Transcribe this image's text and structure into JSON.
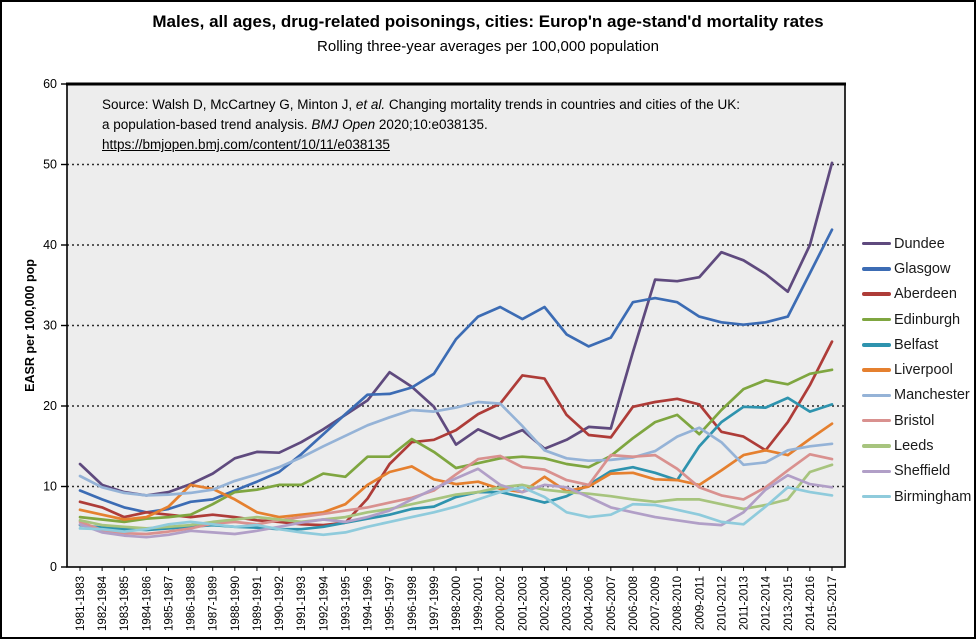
{
  "source_block": {
    "line1": [
      {
        "text": "Source: Walsh D, McCartney G, Minton J, "
      },
      {
        "text": "et al.",
        "italic": true
      },
      {
        "text": " Changing mortality trends in countries and cities of the UK:"
      }
    ],
    "line2": [
      {
        "text": "a population-based trend analysis. "
      },
      {
        "text": "BMJ Open",
        "italic": true
      },
      {
        "text": " 2020;10:e038135."
      }
    ],
    "line3": [
      {
        "text": "https://bmjopen.bmj.com/content/10/11/e038135",
        "underline": true
      }
    ]
  },
  "chart_data": {
    "type": "line",
    "title": "Males, all ages, drug-related poisonings, cities: Europ'n age-stand'd mortality rates",
    "subtitle": "Rolling three-year averages per 100,000 population",
    "ylabel": "EASR per 100,000 pop",
    "xlabel": "",
    "ylim": [
      0,
      60
    ],
    "ytick_interval": 10,
    "grid": "horizontal dotted at 10,20,30,40,50",
    "legend_position": "right",
    "plot_background": "#EDEDED",
    "categories": [
      "1981-1983",
      "1982-1984",
      "1983-1985",
      "1984-1986",
      "1985-1987",
      "1986-1988",
      "1987-1989",
      "1988-1990",
      "1989-1991",
      "1990-1992",
      "1991-1993",
      "1992-1994",
      "1993-1995",
      "1994-1996",
      "1995-1997",
      "1996-1998",
      "1997-1999",
      "1998-2000",
      "1999-2001",
      "2000-2002",
      "2001-2003",
      "2002-2004",
      "2003-2005",
      "2004-2006",
      "2005-2007",
      "2006-2008",
      "2007-2009",
      "2008-2010",
      "2009-2011",
      "2010-2012",
      "2011-2013",
      "2012-2014",
      "2013-2015",
      "2014-2016",
      "2015-2017"
    ],
    "series": [
      {
        "name": "Dundee",
        "color": "#5F4A7E",
        "values": [
          12.8,
          10.2,
          9.3,
          8.9,
          9.3,
          10.3,
          11.6,
          13.5,
          14.3,
          14.2,
          15.5,
          17.1,
          18.9,
          20.7,
          24.2,
          22.4,
          19.9,
          15.2,
          17.1,
          15.9,
          17.0,
          14.7,
          15.8,
          17.4,
          17.2,
          26.7,
          35.7,
          35.5,
          36.0,
          39.1,
          38.1,
          36.4,
          34.2,
          40.0,
          50.2
        ]
      },
      {
        "name": "Glasgow",
        "color": "#3C6CB4",
        "values": [
          9.5,
          8.4,
          7.4,
          6.8,
          7.2,
          8.1,
          8.4,
          9.5,
          10.6,
          11.8,
          14.0,
          16.5,
          19.0,
          21.4,
          21.5,
          22.3,
          24.0,
          28.3,
          31.1,
          32.3,
          30.8,
          32.3,
          28.9,
          27.4,
          28.5,
          32.9,
          33.4,
          32.9,
          31.1,
          30.4,
          30.1,
          30.4,
          31.1,
          36.5,
          41.9
        ]
      },
      {
        "name": "Aberdeen",
        "color": "#AE3C38",
        "values": [
          8.1,
          7.4,
          6.2,
          6.8,
          6.5,
          6.2,
          6.5,
          6.2,
          5.8,
          5.6,
          5.3,
          5.2,
          5.5,
          8.5,
          12.8,
          15.5,
          15.8,
          17.0,
          19.0,
          20.3,
          23.8,
          23.4,
          18.9,
          16.4,
          16.1,
          19.9,
          20.5,
          20.9,
          20.2,
          16.8,
          16.2,
          14.5,
          18.0,
          22.6,
          28.0
        ]
      },
      {
        "name": "Edinburgh",
        "color": "#7FA640",
        "values": [
          6.2,
          5.9,
          5.6,
          6.0,
          6.2,
          6.5,
          7.8,
          9.3,
          9.6,
          10.2,
          10.2,
          11.6,
          11.2,
          13.7,
          13.7,
          15.9,
          14.3,
          12.3,
          12.9,
          13.5,
          13.7,
          13.5,
          12.8,
          12.4,
          13.8,
          16.0,
          18.0,
          18.9,
          16.5,
          19.5,
          22.1,
          23.2,
          22.7,
          24.0,
          24.5
        ]
      },
      {
        "name": "Belfast",
        "color": "#2E93AE",
        "values": [
          5.2,
          4.9,
          4.7,
          4.6,
          4.8,
          5.0,
          5.2,
          5.0,
          4.9,
          4.7,
          4.7,
          5.0,
          5.5,
          6.0,
          6.5,
          7.2,
          7.5,
          8.7,
          9.3,
          9.3,
          8.7,
          8.0,
          8.8,
          10.2,
          11.9,
          12.4,
          11.7,
          10.8,
          15.0,
          18.0,
          19.9,
          19.8,
          21.0,
          19.3,
          20.2
        ]
      },
      {
        "name": "Liverpool",
        "color": "#E5802F",
        "values": [
          7.1,
          6.5,
          5.9,
          6.2,
          7.5,
          10.2,
          9.7,
          8.4,
          6.8,
          6.2,
          6.5,
          6.8,
          7.8,
          10.2,
          11.8,
          12.5,
          10.9,
          10.3,
          10.6,
          9.7,
          9.3,
          11.2,
          9.4,
          10.0,
          11.6,
          11.7,
          10.9,
          10.8,
          10.2,
          12.0,
          13.9,
          14.5,
          13.9,
          15.9,
          17.8
        ]
      },
      {
        "name": "Manchester",
        "color": "#95B3D7",
        "values": [
          11.3,
          9.9,
          9.2,
          8.9,
          9.0,
          9.2,
          9.6,
          10.7,
          11.5,
          12.4,
          13.6,
          15.0,
          16.3,
          17.6,
          18.6,
          19.5,
          19.3,
          19.8,
          20.5,
          20.3,
          17.5,
          14.5,
          13.5,
          13.2,
          13.3,
          13.6,
          14.4,
          16.2,
          17.3,
          15.5,
          12.7,
          13.0,
          14.5,
          15.0,
          15.3
        ]
      },
      {
        "name": "Bristol",
        "color": "#D9918F",
        "values": [
          5.6,
          4.6,
          4.2,
          4.1,
          4.4,
          4.8,
          5.4,
          5.6,
          5.3,
          5.8,
          6.2,
          6.6,
          7.0,
          7.4,
          8.0,
          8.6,
          9.5,
          11.5,
          13.4,
          13.8,
          12.4,
          12.1,
          10.8,
          10.2,
          13.9,
          13.7,
          13.9,
          12.2,
          9.9,
          8.9,
          8.4,
          9.9,
          12.0,
          14.0,
          13.4
        ]
      },
      {
        "name": "Leeds",
        "color": "#A7C47E",
        "values": [
          5.8,
          5.2,
          5.0,
          4.8,
          5.0,
          5.2,
          5.6,
          5.9,
          6.2,
          5.9,
          5.6,
          5.9,
          6.2,
          6.8,
          7.2,
          7.8,
          8.4,
          9.0,
          9.3,
          9.9,
          10.2,
          9.6,
          9.3,
          9.1,
          8.8,
          8.4,
          8.1,
          8.4,
          8.4,
          7.8,
          7.2,
          7.7,
          8.4,
          11.8,
          12.7
        ]
      },
      {
        "name": "Sheffield",
        "color": "#B19FC7",
        "values": [
          5.3,
          4.3,
          3.9,
          3.7,
          4.0,
          4.5,
          4.3,
          4.1,
          4.5,
          5.0,
          5.5,
          5.9,
          5.6,
          6.2,
          7.0,
          8.4,
          9.7,
          11.0,
          12.2,
          10.2,
          9.3,
          10.2,
          9.9,
          8.7,
          7.4,
          6.8,
          6.2,
          5.8,
          5.4,
          5.2,
          6.8,
          9.6,
          11.4,
          10.3,
          9.9
        ]
      },
      {
        "name": "Birmingham",
        "color": "#8FCBDC",
        "values": [
          4.8,
          4.7,
          4.4,
          4.7,
          5.3,
          5.6,
          5.3,
          5.0,
          5.2,
          4.7,
          4.3,
          4.0,
          4.3,
          5.0,
          5.6,
          6.2,
          6.8,
          7.5,
          8.4,
          9.3,
          9.9,
          8.7,
          6.8,
          6.2,
          6.5,
          7.8,
          7.7,
          7.1,
          6.5,
          5.6,
          5.3,
          7.5,
          9.9,
          9.3,
          8.9
        ]
      }
    ]
  }
}
